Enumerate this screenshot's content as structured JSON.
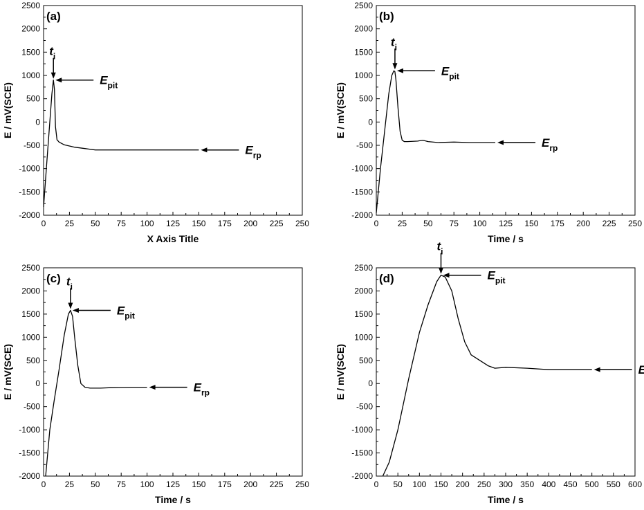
{
  "chart_data": [
    {
      "type": "line",
      "panel_label": "(a)",
      "xlabel": "X Axis Title",
      "ylabel": "E / mV(SCE)",
      "xlim": [
        0,
        250
      ],
      "ylim": [
        -2000,
        2500
      ],
      "xticks": [
        0,
        25,
        50,
        75,
        100,
        125,
        150,
        175,
        200,
        225,
        250
      ],
      "yticks": [
        -2000,
        -1500,
        -1000,
        -500,
        0,
        500,
        1000,
        1500,
        2000,
        2500
      ],
      "x": [
        0,
        3,
        6,
        8,
        9.5,
        10.5,
        11.5,
        13,
        15,
        20,
        30,
        40,
        50,
        75,
        100,
        150
      ],
      "y": [
        -1820,
        -900,
        0,
        600,
        900,
        700,
        -100,
        -380,
        -430,
        -490,
        -540,
        -570,
        -600,
        -600,
        -600,
        -600
      ],
      "annotations": [
        {
          "main": "t",
          "sub": "i",
          "kind": "down-arrow",
          "x": 9.5,
          "y": 900
        },
        {
          "main": "E",
          "sub": "pit",
          "kind": "left-arrow",
          "x": 9.5,
          "y": 900
        },
        {
          "main": "E",
          "sub": "rp",
          "kind": "left-arrow",
          "x": 150,
          "y": -600
        }
      ]
    },
    {
      "type": "line",
      "panel_label": "(b)",
      "xlabel": "Time / s",
      "ylabel": "E / mV(SCE)",
      "xlim": [
        0,
        250
      ],
      "ylim": [
        -2000,
        2500
      ],
      "xticks": [
        0,
        25,
        50,
        75,
        100,
        125,
        150,
        175,
        200,
        225,
        250
      ],
      "yticks": [
        -2000,
        -1500,
        -1000,
        -500,
        0,
        500,
        1000,
        1500,
        2000,
        2500
      ],
      "x": [
        0,
        4,
        8,
        12,
        15,
        17,
        18,
        19,
        21,
        23,
        25,
        27,
        30,
        40,
        45,
        50,
        60,
        75,
        90,
        100,
        115
      ],
      "y": [
        -1950,
        -1000,
        -200,
        600,
        1000,
        1100,
        1080,
        900,
        300,
        -200,
        -390,
        -420,
        -420,
        -410,
        -390,
        -420,
        -440,
        -430,
        -440,
        -440,
        -440
      ],
      "annotations": [
        {
          "main": "t",
          "sub": "i",
          "kind": "down-arrow",
          "x": 18,
          "y": 1100
        },
        {
          "main": "E",
          "sub": "pit",
          "kind": "left-arrow",
          "x": 18,
          "y": 1100
        },
        {
          "main": "E",
          "sub": "rp",
          "kind": "left-arrow",
          "x": 115,
          "y": -440
        }
      ]
    },
    {
      "type": "line",
      "panel_label": "(c)",
      "xlabel": "Time / s",
      "ylabel": "E / mV(SCE)",
      "xlim": [
        0,
        250
      ],
      "ylim": [
        -2000,
        2500
      ],
      "xticks": [
        0,
        25,
        50,
        75,
        100,
        125,
        150,
        175,
        200,
        225,
        250
      ],
      "yticks": [
        -2000,
        -1500,
        -1000,
        -500,
        0,
        500,
        1000,
        1500,
        2000,
        2500
      ],
      "x": [
        2,
        6,
        10,
        15,
        20,
        24,
        26,
        28,
        30,
        33,
        36,
        40,
        45,
        55,
        65,
        75,
        85,
        100
      ],
      "y": [
        -2000,
        -1000,
        -400,
        300,
        1050,
        1500,
        1580,
        1450,
        1000,
        400,
        0,
        -80,
        -100,
        -100,
        -90,
        -85,
        -80,
        -80
      ],
      "annotations": [
        {
          "main": "t",
          "sub": "i",
          "kind": "down-arrow",
          "x": 26,
          "y": 1580
        },
        {
          "main": "E",
          "sub": "pit",
          "kind": "left-arrow",
          "x": 26,
          "y": 1580
        },
        {
          "main": "E",
          "sub": "rp",
          "kind": "left-arrow",
          "x": 100,
          "y": -80
        }
      ]
    },
    {
      "type": "line",
      "panel_label": "(d)",
      "xlabel": "Time / s",
      "ylabel": "E / mV(SCE)",
      "xlim": [
        0,
        600
      ],
      "ylim": [
        -2000,
        2500
      ],
      "xticks": [
        0,
        50,
        100,
        150,
        200,
        250,
        300,
        350,
        400,
        450,
        500,
        550,
        600
      ],
      "yticks": [
        -2000,
        -1500,
        -1000,
        -500,
        0,
        500,
        1000,
        1500,
        2000,
        2500
      ],
      "x": [
        15,
        30,
        50,
        75,
        100,
        120,
        140,
        150,
        160,
        175,
        190,
        205,
        220,
        240,
        260,
        275,
        300,
        350,
        400,
        450,
        500
      ],
      "y": [
        -2000,
        -1700,
        -1000,
        100,
        1100,
        1700,
        2200,
        2340,
        2300,
        2000,
        1400,
        900,
        620,
        500,
        380,
        330,
        350,
        330,
        300,
        300,
        300
      ],
      "annotations": [
        {
          "main": "t",
          "sub": "i",
          "kind": "down-arrow",
          "x": 150,
          "y": 2340
        },
        {
          "main": "E",
          "sub": "pit",
          "kind": "left-arrow",
          "x": 150,
          "y": 2340
        },
        {
          "main": "E",
          "sub": "rp",
          "kind": "left-arrow",
          "x": 500,
          "y": 300
        }
      ]
    }
  ]
}
